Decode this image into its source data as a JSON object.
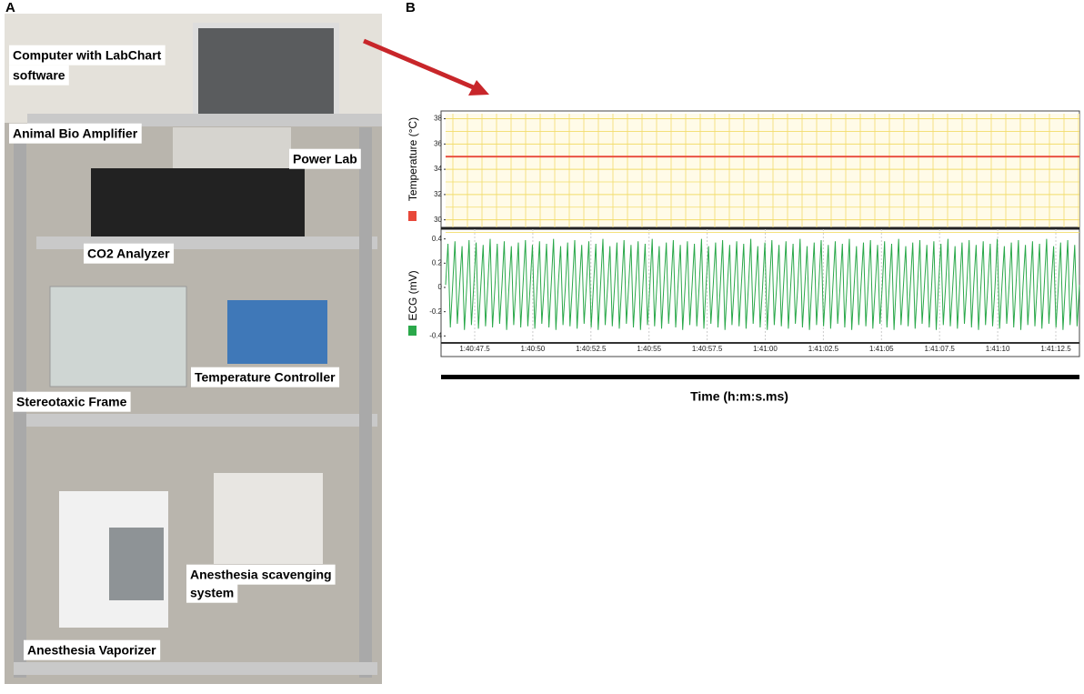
{
  "panel_a": {
    "letter": "A",
    "labels": [
      "Computer with LabChart",
      "software",
      "Animal Bio Amplifier",
      "Power Lab",
      "CO2 Analyzer",
      "Temperature Controller",
      "Stereotaxic Frame",
      "Anesthesia scavenging",
      "system",
      "Anesthesia Vaporizer"
    ]
  },
  "panel_b": {
    "letter": "B",
    "x_axis_label": "Time (h:m:s.ms)"
  },
  "chart_data": [
    {
      "type": "line",
      "y_axis_label": "Temperature (°C)",
      "color": "#e8483a",
      "ylim": [
        29.4,
        38.4
      ],
      "yticks": [
        30,
        32,
        34,
        36,
        38
      ],
      "grid": true,
      "values": [
        35,
        35,
        35,
        35,
        35,
        35,
        35,
        35,
        35,
        35,
        35
      ]
    },
    {
      "type": "line",
      "y_axis_label": "ECG (mV)",
      "color": "#2aa84a",
      "ylim": [
        -0.45,
        0.48
      ],
      "yticks": [
        0.4,
        0.2,
        0,
        -0.2,
        -0.4
      ],
      "x_tick_labels": [
        "1:40:47.5",
        "1:40:50",
        "1:40:52.5",
        "1:40:55",
        "1:40:57.5",
        "1:41:00",
        "1:41:02.5",
        "1:41:05",
        "1:41:07.5",
        "1:41:10",
        "1:41:12.5"
      ],
      "values": [
        0.02,
        0.36,
        -0.33,
        0.01,
        0.38,
        -0.3,
        0.03,
        0.34,
        -0.35,
        0.0,
        0.39,
        -0.31,
        0.02,
        0.37,
        -0.34,
        0.01,
        0.35,
        -0.32,
        0.03,
        0.4,
        -0.33,
        0.0,
        0.36,
        -0.3,
        0.02,
        0.38,
        -0.35,
        0.01,
        0.34,
        -0.31,
        0.02,
        0.37,
        -0.33,
        0.03,
        0.39,
        -0.32,
        0.0,
        0.35,
        -0.34,
        0.02,
        0.38,
        -0.3,
        0.01,
        0.36,
        -0.33,
        0.03,
        0.4,
        -0.35,
        0.02,
        0.34,
        -0.31,
        0.0,
        0.37,
        -0.32,
        0.01,
        0.39,
        -0.34,
        0.02,
        0.35,
        -0.3,
        0.03,
        0.38,
        -0.33,
        0.01,
        0.36,
        -0.35,
        0.02,
        0.4,
        -0.31,
        0.0,
        0.34,
        -0.32,
        0.02,
        0.37,
        -0.34,
        0.01,
        0.39,
        -0.3,
        0.03,
        0.35,
        -0.33,
        0.02,
        0.38,
        -0.35,
        0.0,
        0.36,
        -0.31,
        0.01,
        0.4,
        -0.32,
        0.02,
        0.34,
        -0.34,
        0.03,
        0.37,
        -0.3,
        0.01,
        0.39,
        -0.33,
        0.02,
        0.35,
        -0.35,
        0.0,
        0.38,
        -0.31,
        0.02,
        0.36,
        -0.32,
        0.01,
        0.4,
        -0.34,
        0.03,
        0.34,
        -0.3,
        0.02,
        0.37,
        -0.33,
        0.0,
        0.39,
        -0.35,
        0.01,
        0.35,
        -0.31,
        0.02,
        0.38,
        -0.32,
        0.03,
        0.36,
        -0.34,
        0.01,
        0.4,
        -0.3,
        0.02,
        0.34,
        -0.33,
        0.0,
        0.37,
        -0.35,
        0.02,
        0.39,
        -0.31,
        0.01,
        0.35,
        -0.32,
        0.03,
        0.38,
        -0.34,
        0.02,
        0.36,
        -0.3,
        0.0,
        0.4,
        -0.33,
        0.01,
        0.34,
        -0.35,
        0.02,
        0.37,
        -0.31,
        0.03,
        0.39,
        -0.32,
        0.01,
        0.35,
        -0.34,
        0.02,
        0.38,
        -0.3,
        0.0,
        0.36,
        -0.33,
        0.02,
        0.4,
        -0.35,
        0.01,
        0.34,
        -0.31,
        0.03,
        0.37,
        -0.32,
        0.02,
        0.39,
        -0.34,
        0.0,
        0.35,
        -0.3,
        0.01,
        0.38,
        -0.33,
        0.02,
        0.36,
        -0.35,
        0.03,
        0.4,
        -0.31,
        0.01,
        0.34,
        -0.32,
        0.02,
        0.37,
        -0.34,
        0.0,
        0.39,
        -0.3,
        0.02,
        0.35,
        -0.33,
        0.01,
        0.38,
        -0.35,
        0.03,
        0.36,
        -0.31,
        0.02,
        0.4,
        -0.32,
        0.0,
        0.34,
        -0.34,
        0.01,
        0.37,
        -0.3,
        0.02,
        0.39,
        -0.33,
        0.03,
        0.35,
        -0.35,
        0.01,
        0.38,
        -0.31,
        0.02,
        0.36,
        -0.32,
        0.0,
        0.4,
        -0.34,
        0.02,
        0.34,
        -0.3,
        0.01,
        0.37,
        -0.33,
        0.03,
        0.39,
        -0.35,
        0.02,
        0.35,
        -0.31,
        0.0,
        0.38,
        -0.32,
        0.01,
        0.36,
        -0.34,
        0.02,
        0.4,
        -0.3,
        0.03,
        0.34,
        -0.33,
        0.01,
        0.37,
        -0.35,
        0.02,
        0.39,
        -0.31,
        0.0,
        0.35,
        -0.32,
        0.02
      ]
    }
  ]
}
